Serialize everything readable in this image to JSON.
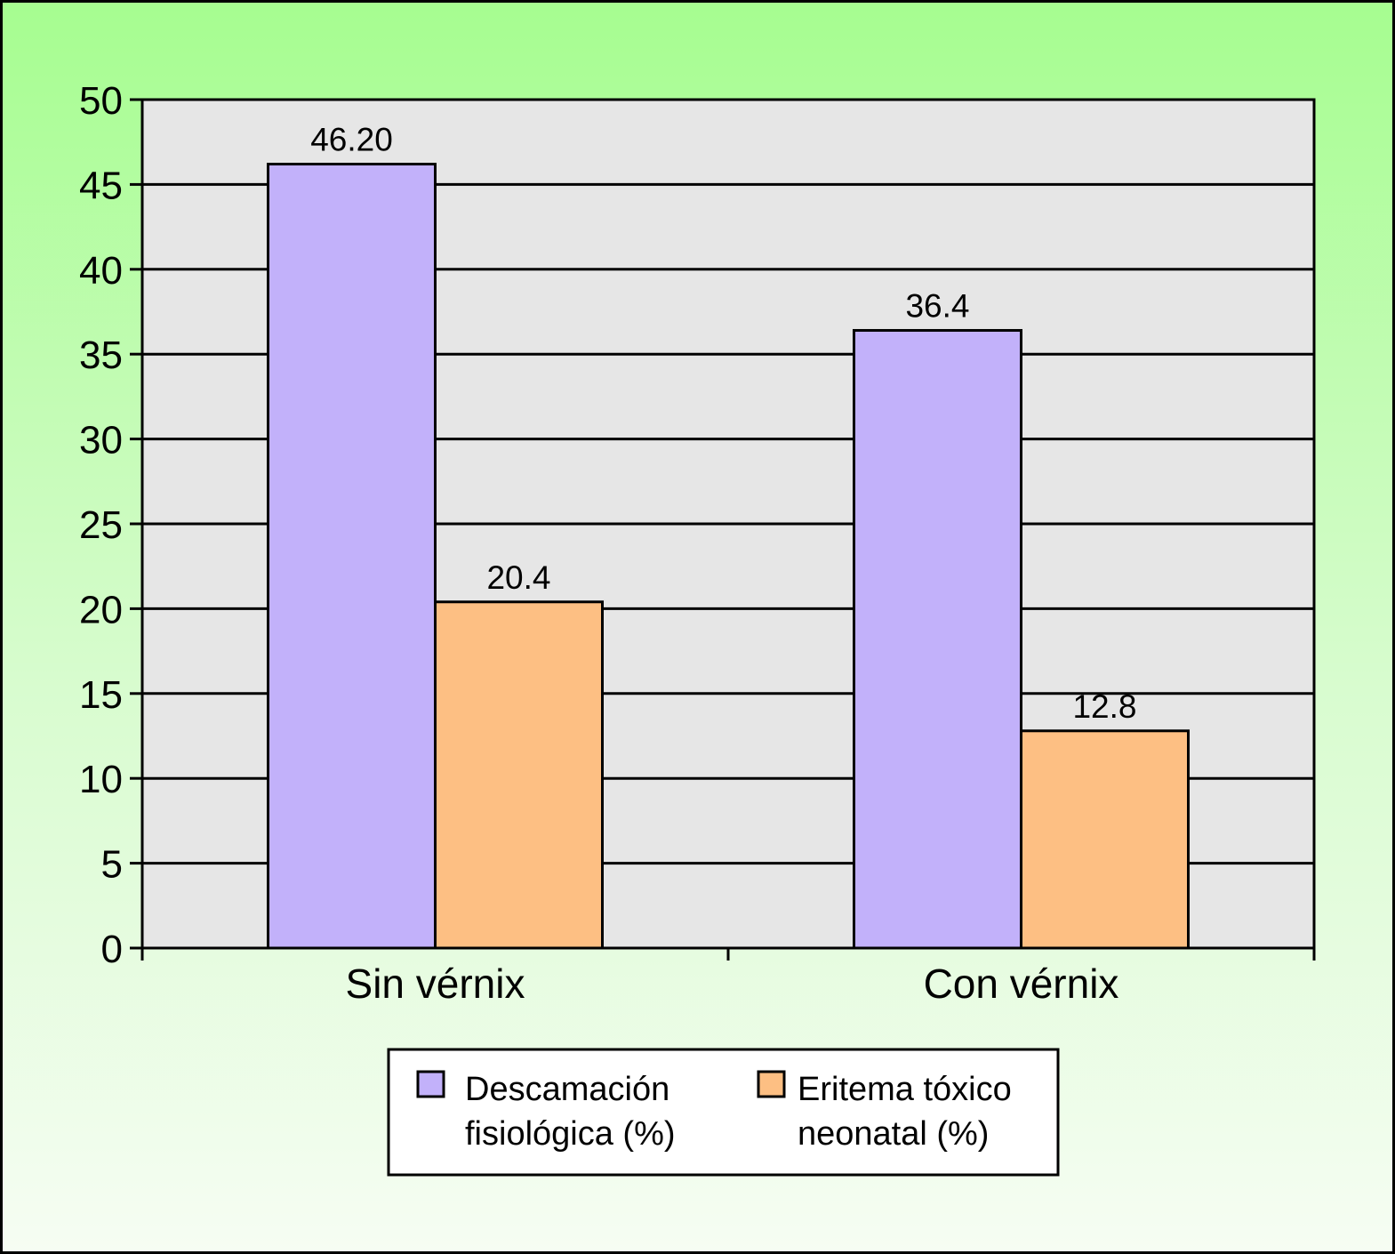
{
  "chart_data": {
    "type": "bar",
    "categories": [
      "Sin vérnix",
      "Con vérnix"
    ],
    "series": [
      {
        "name": "Descamación fisiológica (%)",
        "legend_lines": [
          "Descamación",
          "fisiológica (%)"
        ],
        "values": [
          46.2,
          36.4
        ],
        "labels": [
          "46.20",
          "36.4"
        ],
        "color": "#c2b1fa"
      },
      {
        "name": "Eritema tóxico neonatal (%)",
        "legend_lines": [
          "Eritema tóxico",
          "neonatal (%)"
        ],
        "values": [
          20.4,
          12.8
        ],
        "labels": [
          "20.4",
          "12.8"
        ],
        "color": "#fdbf83"
      }
    ],
    "yticks": [
      "0",
      "5",
      "10",
      "15",
      "20",
      "25",
      "30",
      "35",
      "40",
      "45",
      "50"
    ],
    "ylim": [
      0,
      50
    ],
    "title": "",
    "xlabel": "",
    "ylabel": "",
    "grid": true,
    "legend_position": "bottom",
    "plot_background": "#e6e6e6",
    "page_background": [
      "#a6fd90",
      "#f6fdf3"
    ]
  }
}
